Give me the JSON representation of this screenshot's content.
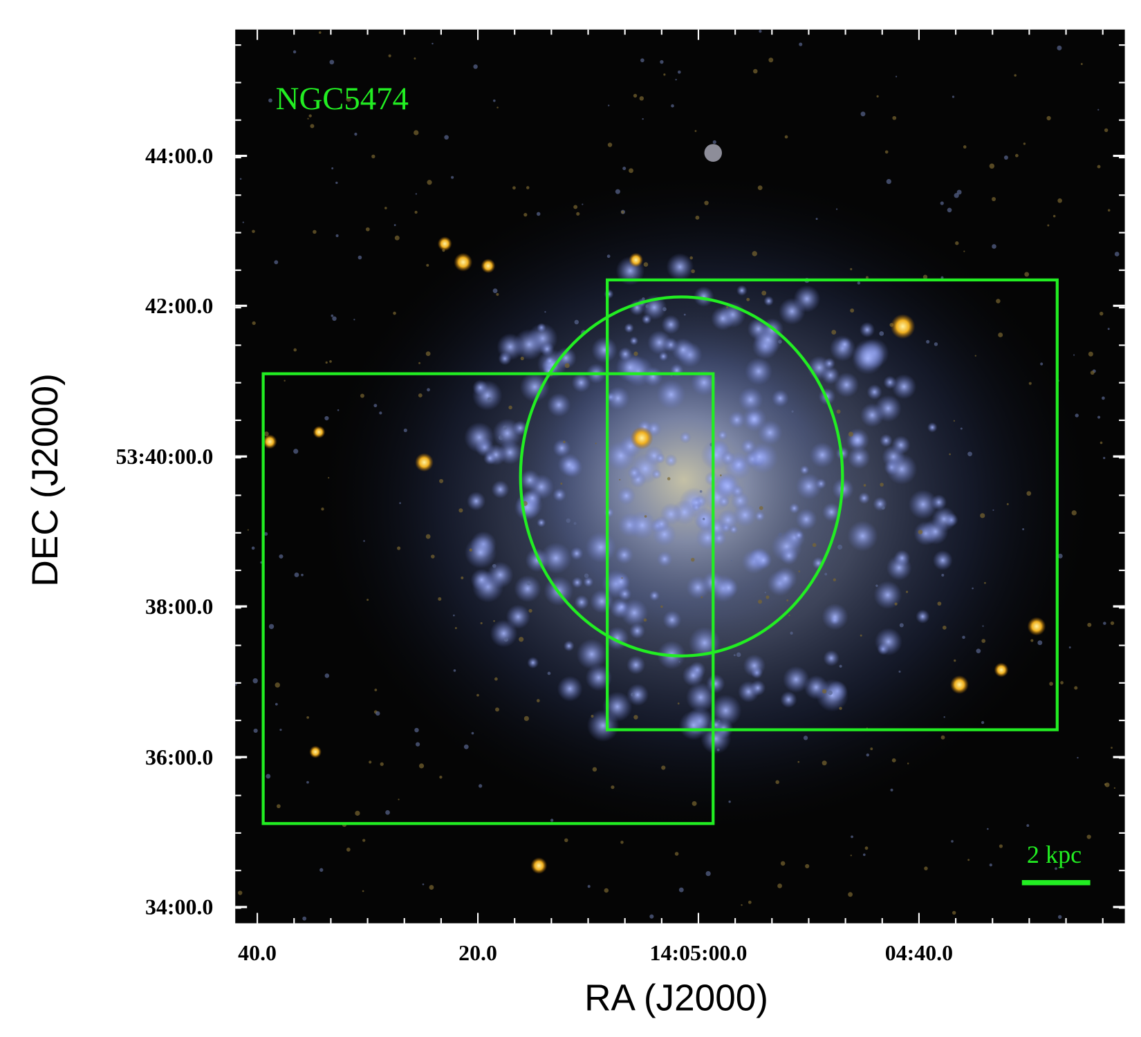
{
  "image": {
    "label": "NGC5474",
    "scale_bar": "2 kpc"
  },
  "axes": {
    "x_title": "RA (J2000)",
    "y_title": "DEC (J2000)",
    "x_ticks": [
      "40.0",
      "20.0",
      "14:05:00.0",
      "04:40.0"
    ],
    "y_ticks": [
      "44:00.0",
      "42:00.0",
      "53:40:00.0",
      "38:00.0",
      "36:00.0",
      "34:00.0"
    ]
  }
}
